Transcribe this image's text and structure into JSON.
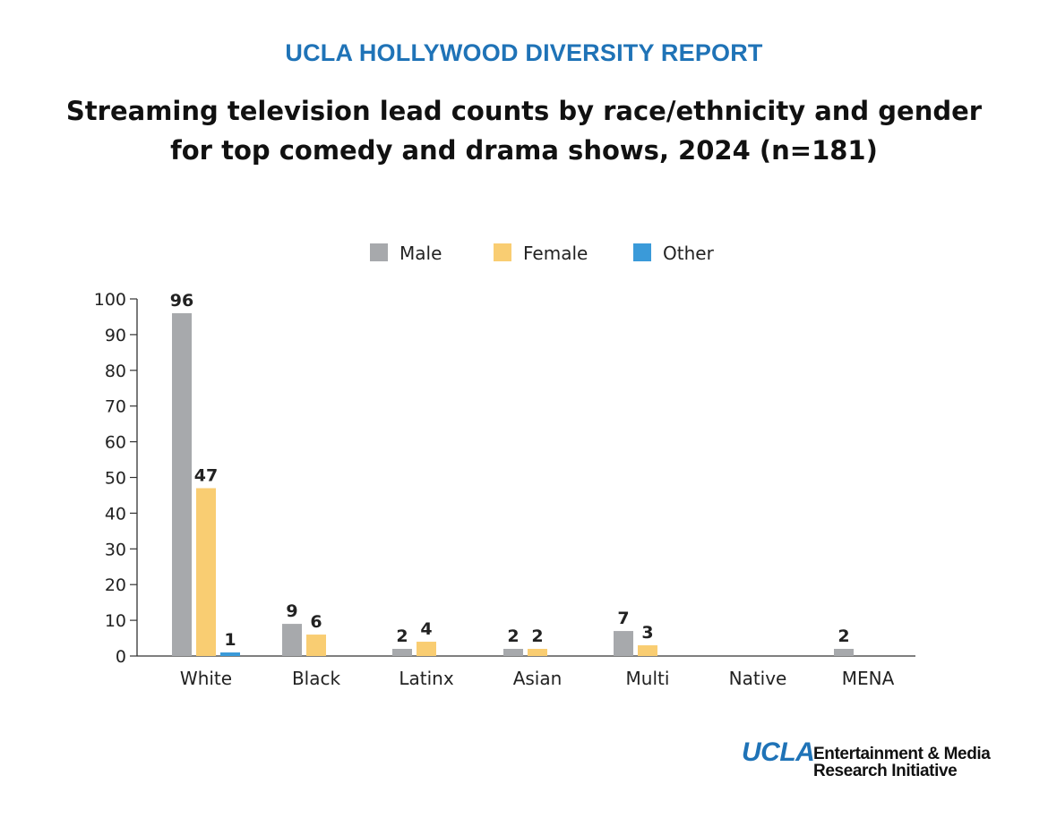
{
  "header": {
    "report_name": "UCLA HOLLYWOOD DIVERSITY REPORT",
    "title_line1": "Streaming television lead counts by race/ethnicity and gender",
    "title_line2": "for top comedy and drama shows, 2024 (n=181)"
  },
  "logo": {
    "mark": "UCLA",
    "line1": "Entertainment & Media",
    "line2": "Research Initiative"
  },
  "chart_data": {
    "type": "bar",
    "title": "Streaming television lead counts by race/ethnicity and gender for top comedy and drama shows, 2024 (n=181)",
    "xlabel": "",
    "ylabel": "",
    "ylim": [
      0,
      100
    ],
    "yticks": [
      0,
      10,
      20,
      30,
      40,
      50,
      60,
      70,
      80,
      90,
      100
    ],
    "categories": [
      "White",
      "Black",
      "Latinx",
      "Asian",
      "Multi",
      "Native",
      "MENA"
    ],
    "legend_position": "top-center",
    "grid": false,
    "series": [
      {
        "name": "Male",
        "color": "#a7a9ac",
        "values": [
          96,
          9,
          2,
          2,
          7,
          null,
          2
        ]
      },
      {
        "name": "Female",
        "color": "#f9cd72",
        "values": [
          47,
          6,
          4,
          2,
          3,
          null,
          null
        ]
      },
      {
        "name": "Other",
        "color": "#3a9ad9",
        "values": [
          1,
          null,
          null,
          null,
          null,
          null,
          null
        ]
      }
    ]
  }
}
